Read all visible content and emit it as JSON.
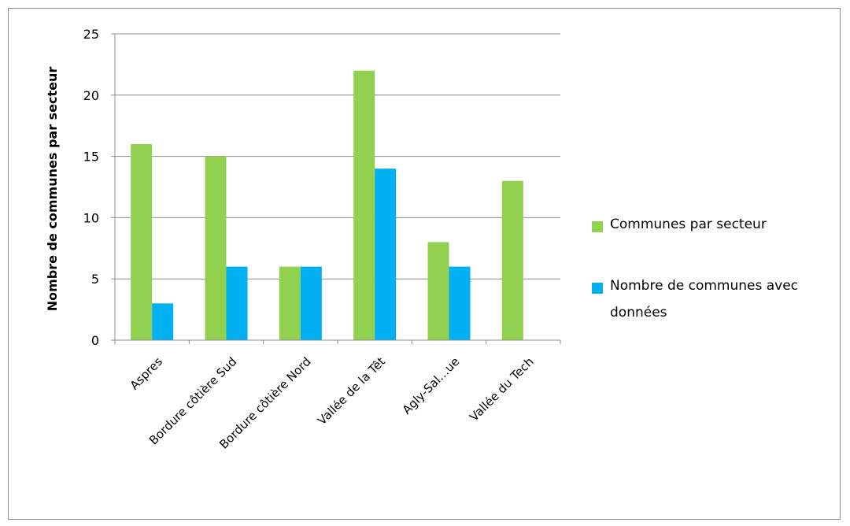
{
  "chart_data": {
    "type": "bar",
    "categories": [
      "Aspres",
      "Bordure côtière Sud",
      "Bordure côtière Nord",
      "Vallée de la Têt",
      "Agly-Sal…ue",
      "Vallée du Tech"
    ],
    "series": [
      {
        "name": "Communes par secteur",
        "color": "#92d050",
        "values": [
          16,
          15,
          6,
          22,
          8,
          13
        ]
      },
      {
        "name": "Nombre de communes avec données",
        "color": "#00b0f0",
        "values": [
          3,
          6,
          6,
          14,
          6,
          0
        ]
      }
    ],
    "ylabel": "Nombre de communes par secteur",
    "ylim": [
      0,
      25
    ],
    "yticks": [
      0,
      5,
      10,
      15,
      20,
      25
    ],
    "grid": true,
    "legend": "right"
  },
  "legend": {
    "items": [
      {
        "label": "Communes par secteur",
        "color": "#92d050"
      },
      {
        "label": "Nombre de communes avec  données",
        "color": "#00b0f0"
      }
    ]
  }
}
